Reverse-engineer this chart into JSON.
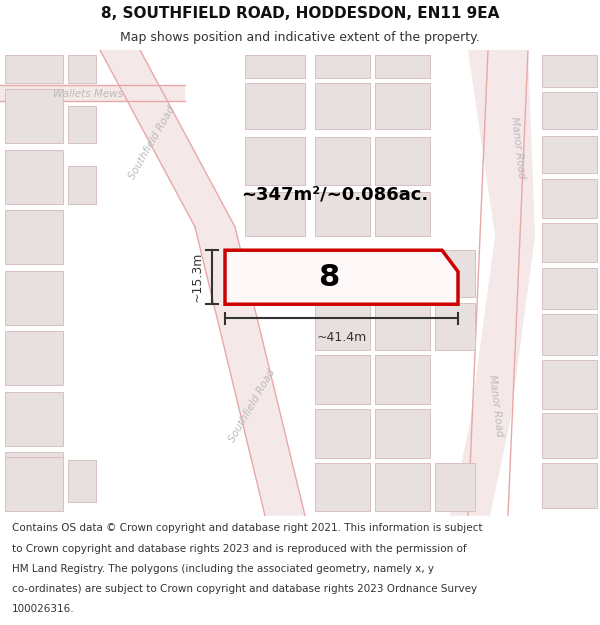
{
  "title": "8, SOUTHFIELD ROAD, HODDESDON, EN11 9EA",
  "subtitle": "Map shows position and indicative extent of the property.",
  "footer_lines": [
    "Contains OS data © Crown copyright and database right 2021. This information is subject",
    "to Crown copyright and database rights 2023 and is reproduced with the permission of",
    "HM Land Registry. The polygons (including the associated geometry, namely x, y",
    "co-ordinates) are subject to Crown copyright and database rights 2023 Ordnance Survey",
    "100026316."
  ],
  "area_label": "~347m²/~0.086ac.",
  "width_label": "~41.4m",
  "height_label": "~15.3m",
  "property_number": "8",
  "map_bg": "#f0eaea",
  "road_color": "#f5e8e8",
  "road_line_color": "#e8a8a8",
  "block_fc": "#e8e0de",
  "block_ec": "#d8c0c0",
  "property_fill": "#fff8f8",
  "property_edge": "#cc0000",
  "dim_color": "#333333",
  "text_color": "#333333",
  "title_color": "#111111",
  "road_label_color": "#bbbbbb",
  "footer_color": "#333333"
}
